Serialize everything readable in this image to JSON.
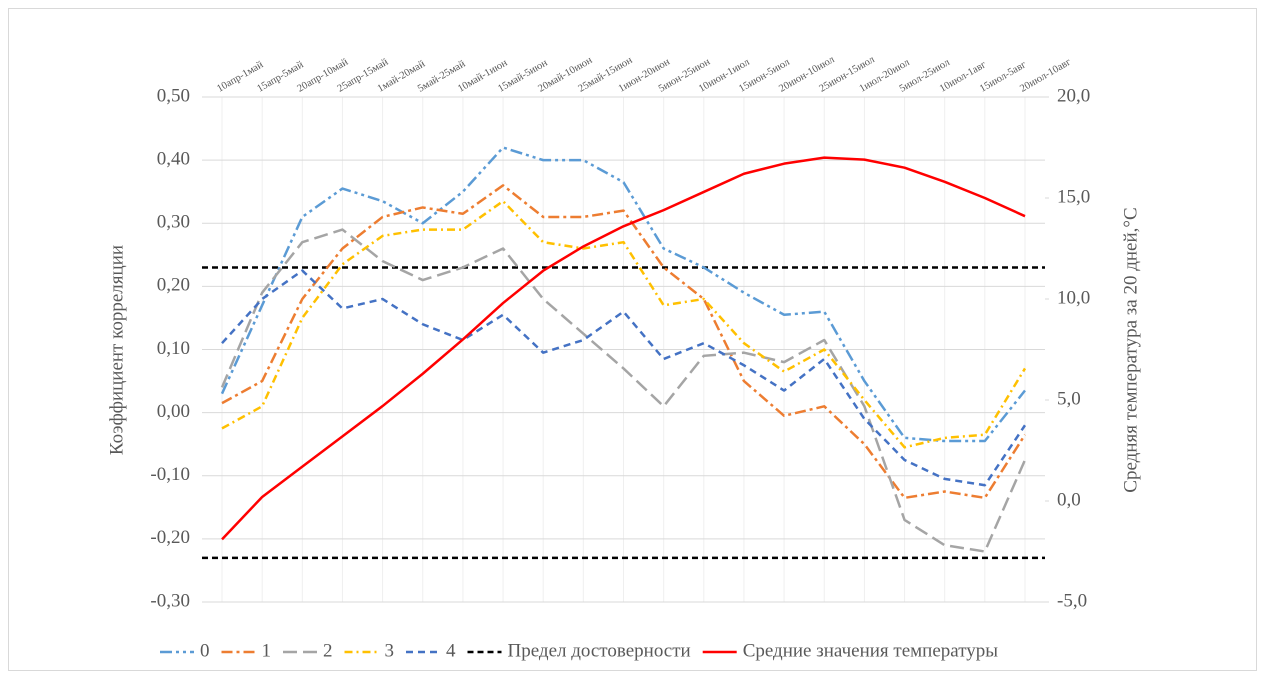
{
  "chart_data": {
    "type": "line",
    "y_label": "Коэффициент корреляции",
    "y2_label": "Средняя температура за 20 дней,°C",
    "categories": [
      "10апр-1май",
      "15апр-5май",
      "20апр-10май",
      "25апр-15май",
      "1май-20май",
      "5май-25май",
      "10май-1июн",
      "15май-5июн",
      "20май-10июн",
      "25май-15июн",
      "1июн-20июн",
      "5июн-25июн",
      "10июн-1июл",
      "15июн-5июл",
      "20июн-10июл",
      "25июн-15июл",
      "1июл-20июл",
      "5июл-25июл",
      "10июл-1авг",
      "15июл-5авг",
      "20июл-10авг"
    ],
    "ylim": [
      -0.3,
      0.5
    ],
    "yticks": [
      {
        "value": 0.5,
        "label": "0,50"
      },
      {
        "value": 0.4,
        "label": "0,40"
      },
      {
        "value": 0.3,
        "label": "0,30"
      },
      {
        "value": 0.2,
        "label": "0,20"
      },
      {
        "value": 0.1,
        "label": "0,10"
      },
      {
        "value": 0,
        "label": "0,00"
      },
      {
        "value": -0.1,
        "label": "-0,10"
      },
      {
        "value": -0.2,
        "label": "-0,20"
      },
      {
        "value": -0.3,
        "label": "-0,30"
      }
    ],
    "y2lim": [
      -5,
      20
    ],
    "y2ticks": [
      {
        "value": 20,
        "label": "20,0"
      },
      {
        "value": 15,
        "label": "15,0"
      },
      {
        "value": 10,
        "label": "10,0"
      },
      {
        "value": 5,
        "label": "5,0"
      },
      {
        "value": 0,
        "label": "0,0"
      },
      {
        "value": -5,
        "label": "-5,0"
      }
    ],
    "series": [
      {
        "name": "0",
        "color": "#5b9bd5",
        "dash": "12 4 3 4 3 4",
        "values": [
          0.03,
          0.17,
          0.31,
          0.355,
          0.335,
          0.3,
          0.35,
          0.42,
          0.4,
          0.4,
          0.365,
          0.26,
          0.23,
          0.19,
          0.155,
          0.16,
          0.05,
          -0.04,
          -0.045,
          -0.045,
          0.035
        ]
      },
      {
        "name": "1",
        "color": "#ed7d31",
        "dash": "11 4 3 4",
        "values": [
          0.015,
          0.05,
          0.18,
          0.26,
          0.31,
          0.325,
          0.315,
          0.36,
          0.31,
          0.31,
          0.32,
          0.23,
          0.18,
          0.05,
          -0.005,
          0.01,
          -0.05,
          -0.135,
          -0.125,
          -0.135,
          -0.035
        ]
      },
      {
        "name": "2",
        "color": "#a5a5a5",
        "dash": "14 6",
        "values": [
          0.04,
          0.19,
          0.27,
          0.29,
          0.24,
          0.21,
          0.23,
          0.26,
          0.18,
          0.125,
          0.07,
          0.01,
          0.09,
          0.095,
          0.08,
          0.115,
          0.01,
          -0.17,
          -0.21,
          -0.22,
          -0.075
        ]
      },
      {
        "name": "3",
        "color": "#ffc000",
        "dash": "8 4 2 4",
        "values": [
          -0.025,
          0.01,
          0.15,
          0.235,
          0.28,
          0.29,
          0.29,
          0.335,
          0.27,
          0.26,
          0.27,
          0.17,
          0.18,
          0.11,
          0.065,
          0.1,
          0.02,
          -0.055,
          -0.04,
          -0.035,
          0.07
        ]
      },
      {
        "name": "4",
        "color": "#4472c4",
        "dash": "7 5",
        "values": [
          0.11,
          0.18,
          0.225,
          0.165,
          0.18,
          0.14,
          0.115,
          0.155,
          0.095,
          0.115,
          0.16,
          0.085,
          0.11,
          0.075,
          0.035,
          0.085,
          -0.01,
          -0.075,
          -0.105,
          -0.115,
          -0.02
        ]
      },
      {
        "name": "Средние значения температуры",
        "color": "#ff0000",
        "axis": "y2",
        "values": [
          -1.9,
          0.2,
          1.7,
          3.2,
          4.7,
          6.3,
          8.0,
          9.8,
          11.4,
          12.6,
          13.6,
          14.4,
          15.3,
          16.2,
          16.7,
          17.0,
          16.9,
          16.5,
          15.8,
          15.0,
          14.1
        ]
      }
    ],
    "limit": {
      "name": "Предел достоверности",
      "color": "#000000",
      "values": [
        0.23,
        -0.23
      ]
    }
  }
}
